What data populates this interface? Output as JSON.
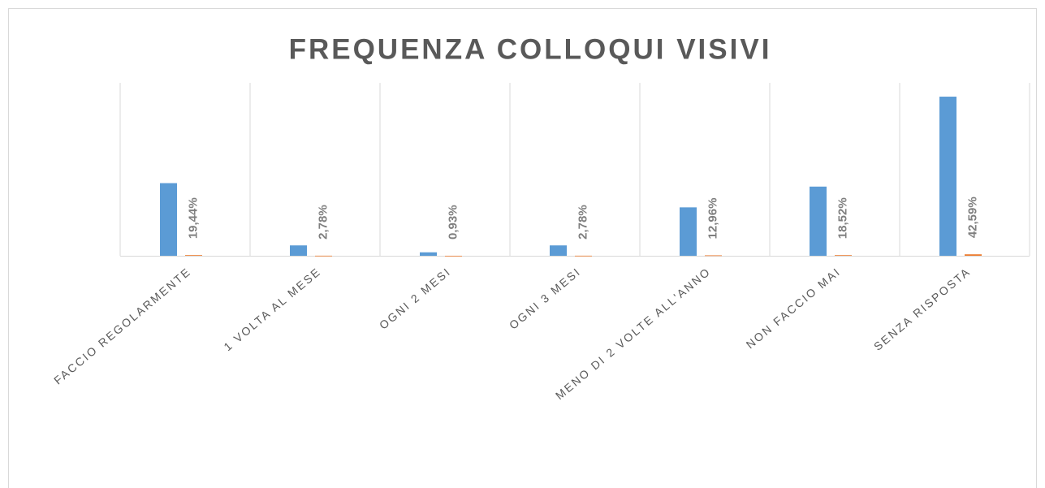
{
  "chart_data": {
    "type": "bar",
    "title": "FREQUENZA COLLOQUI VISIVI",
    "categories": [
      "FACCIO  REGOLARMENTE",
      "1 VOLTA AL MESE",
      "OGNI 2 MESI",
      "OGNI 3 MESI",
      "MENO DI 2 VOLTE ALL'ANNO",
      "NON FACCIO MAI",
      "SENZA RISPOSTA"
    ],
    "series": [
      {
        "color": "#5b9bd5",
        "values": [
          21,
          3,
          1,
          3,
          14,
          20,
          46
        ]
      },
      {
        "color": "#ed7d31",
        "values": [
          0.1944,
          0.0278,
          0.0093,
          0.0278,
          0.1296,
          0.1852,
          0.4259
        ],
        "value_labels": [
          "19,44%",
          "2,78%",
          "0,93%",
          "2,78%",
          "12,96%",
          "18,52%",
          "42,59%"
        ]
      }
    ],
    "ylim": [
      0,
      50
    ]
  }
}
